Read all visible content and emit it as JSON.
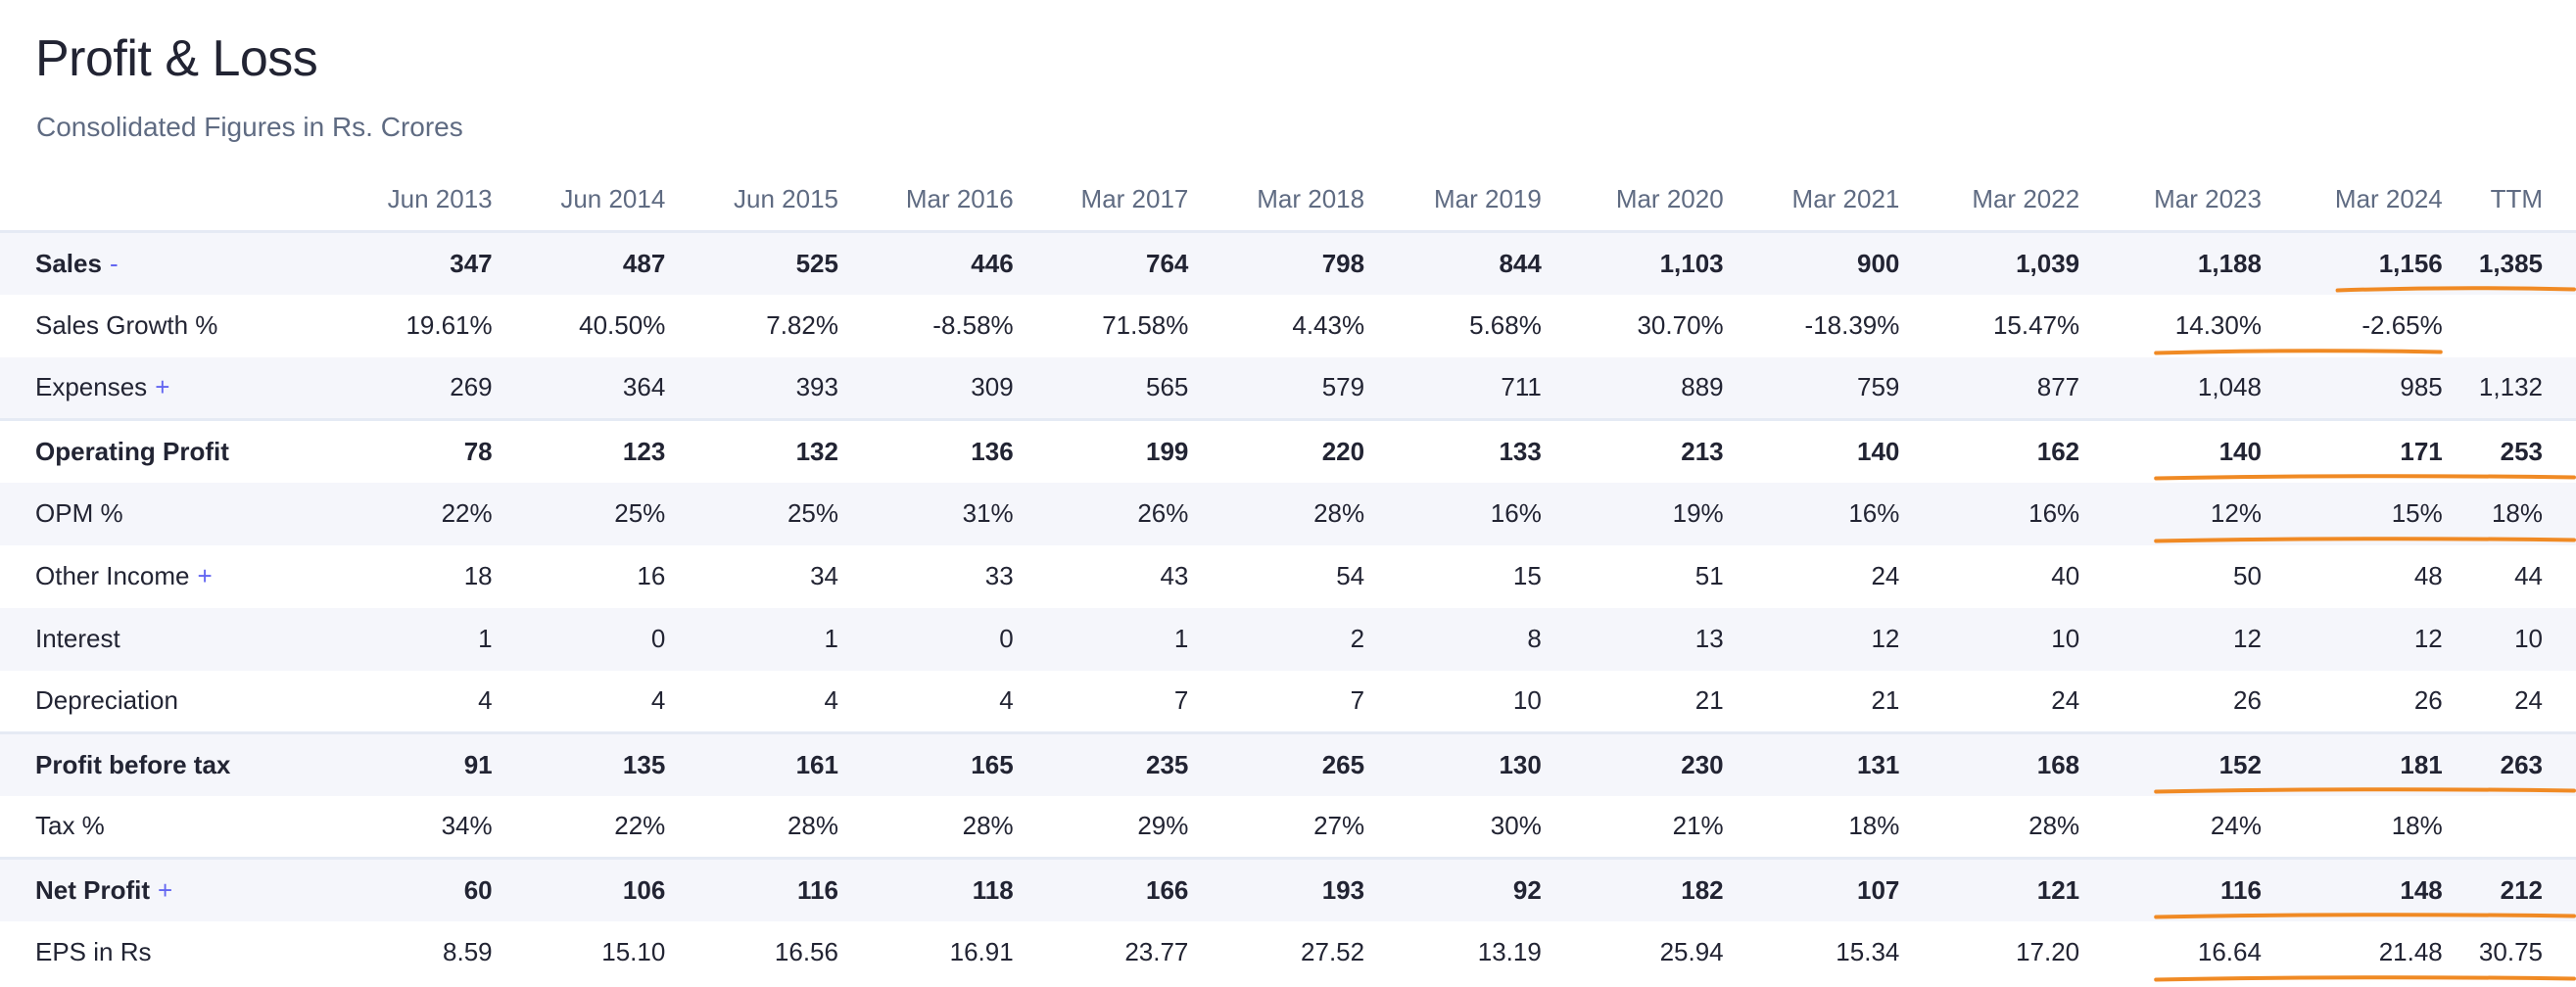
{
  "header": {
    "title": "Profit & Loss",
    "subtitle": "Consolidated Figures in Rs. Crores"
  },
  "table": {
    "columns": [
      "Jun 2013",
      "Jun 2014",
      "Jun 2015",
      "Mar 2016",
      "Mar 2017",
      "Mar 2018",
      "Mar 2019",
      "Mar 2020",
      "Mar 2021",
      "Mar 2022",
      "Mar 2023",
      "Mar 2024",
      "TTM"
    ],
    "rows": [
      {
        "label": "Sales",
        "toggle": "-",
        "strong": true,
        "values": [
          "347",
          "487",
          "525",
          "446",
          "764",
          "798",
          "844",
          "1,103",
          "900",
          "1,039",
          "1,188",
          "1,156",
          "1,385"
        ]
      },
      {
        "label": "Sales Growth %",
        "toggle": "",
        "strong": false,
        "values": [
          "19.61%",
          "40.50%",
          "7.82%",
          "-8.58%",
          "71.58%",
          "4.43%",
          "5.68%",
          "30.70%",
          "-18.39%",
          "15.47%",
          "14.30%",
          "-2.65%",
          ""
        ]
      },
      {
        "label": "Expenses",
        "toggle": "+",
        "strong": false,
        "values": [
          "269",
          "364",
          "393",
          "309",
          "565",
          "579",
          "711",
          "889",
          "759",
          "877",
          "1,048",
          "985",
          "1,132"
        ]
      },
      {
        "label": "Operating Profit",
        "toggle": "",
        "strong": true,
        "values": [
          "78",
          "123",
          "132",
          "136",
          "199",
          "220",
          "133",
          "213",
          "140",
          "162",
          "140",
          "171",
          "253"
        ]
      },
      {
        "label": "OPM %",
        "toggle": "",
        "strong": false,
        "values": [
          "22%",
          "25%",
          "25%",
          "31%",
          "26%",
          "28%",
          "16%",
          "19%",
          "16%",
          "16%",
          "12%",
          "15%",
          "18%"
        ]
      },
      {
        "label": "Other Income",
        "toggle": "+",
        "strong": false,
        "values": [
          "18",
          "16",
          "34",
          "33",
          "43",
          "54",
          "15",
          "51",
          "24",
          "40",
          "50",
          "48",
          "44"
        ]
      },
      {
        "label": "Interest",
        "toggle": "",
        "strong": false,
        "values": [
          "1",
          "0",
          "1",
          "0",
          "1",
          "2",
          "8",
          "13",
          "12",
          "10",
          "12",
          "12",
          "10"
        ]
      },
      {
        "label": "Depreciation",
        "toggle": "",
        "strong": false,
        "values": [
          "4",
          "4",
          "4",
          "4",
          "7",
          "7",
          "10",
          "21",
          "21",
          "24",
          "26",
          "26",
          "24"
        ]
      },
      {
        "label": "Profit before tax",
        "toggle": "",
        "strong": true,
        "values": [
          "91",
          "135",
          "161",
          "165",
          "235",
          "265",
          "130",
          "230",
          "131",
          "168",
          "152",
          "181",
          "263"
        ]
      },
      {
        "label": "Tax %",
        "toggle": "",
        "strong": false,
        "values": [
          "34%",
          "22%",
          "28%",
          "28%",
          "29%",
          "27%",
          "30%",
          "21%",
          "18%",
          "28%",
          "24%",
          "18%",
          ""
        ]
      },
      {
        "label": "Net Profit",
        "toggle": "+",
        "strong": true,
        "values": [
          "60",
          "106",
          "116",
          "118",
          "166",
          "193",
          "92",
          "182",
          "107",
          "121",
          "116",
          "148",
          "212"
        ]
      },
      {
        "label": "EPS in Rs",
        "toggle": "",
        "strong": false,
        "values": [
          "8.59",
          "15.10",
          "16.56",
          "16.91",
          "23.77",
          "27.52",
          "13.19",
          "25.94",
          "15.34",
          "17.20",
          "16.64",
          "21.48",
          "30.75"
        ]
      }
    ]
  },
  "annotations": {
    "color": "#f08a24",
    "underlines": [
      {
        "row": 0,
        "from_col": 11,
        "to_col": 12
      },
      {
        "row": 1,
        "from_col": 10,
        "to_col": 11
      },
      {
        "row": 3,
        "from_col": 10,
        "to_col": 12
      },
      {
        "row": 4,
        "from_col": 10,
        "to_col": 12
      },
      {
        "row": 8,
        "from_col": 10,
        "to_col": 12
      },
      {
        "row": 10,
        "from_col": 10,
        "to_col": 12
      },
      {
        "row": 11,
        "from_col": 10,
        "to_col": 12
      }
    ]
  }
}
